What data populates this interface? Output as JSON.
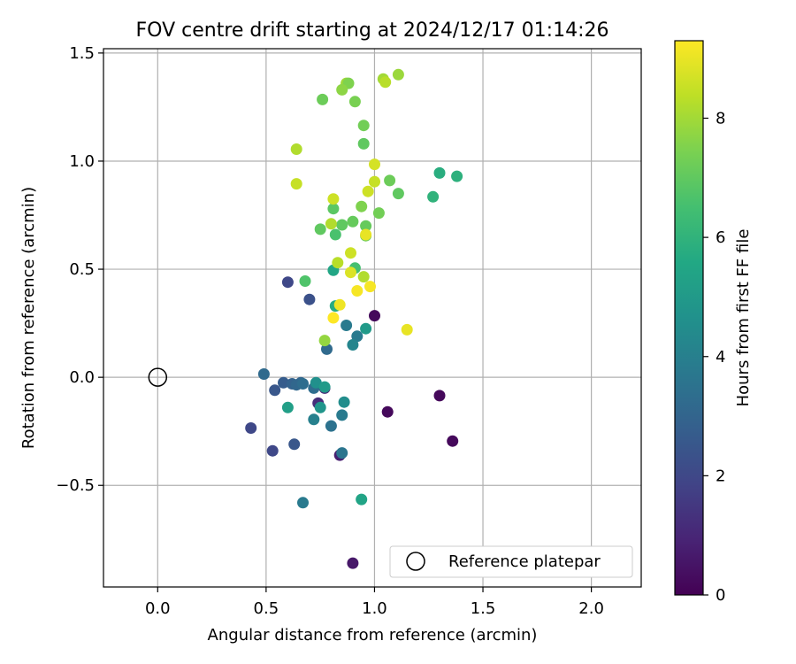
{
  "chart_data": {
    "type": "scatter",
    "title": "FOV centre drift starting at 2024/12/17 01:14:26",
    "xlabel": "Angular distance from reference (arcmin)",
    "ylabel": "Rotation from reference (arcmin)",
    "xlim": [
      -0.25,
      2.23
    ],
    "ylim": [
      -0.97,
      1.52
    ],
    "xticks": [
      0.0,
      0.5,
      1.0,
      1.5,
      2.0
    ],
    "xtick_labels": [
      "0.0",
      "0.5",
      "1.0",
      "1.5",
      "2.0"
    ],
    "yticks": [
      -0.5,
      0.0,
      0.5,
      1.0,
      1.5
    ],
    "ytick_labels": [
      "−0.5",
      "0.0",
      "0.5",
      "1.0",
      "1.5"
    ],
    "grid": true,
    "legend": {
      "placement": "lower-right",
      "entries": [
        {
          "label": "Reference platepar",
          "marker": "open-circle"
        }
      ]
    },
    "reference_point": {
      "x": 0.0,
      "y": 0.0
    },
    "colorbar": {
      "label": "Hours from first FF file",
      "colormap": "viridis",
      "range": [
        0,
        9.3
      ],
      "ticks": [
        0,
        2,
        4,
        6,
        8
      ],
      "tick_labels": [
        "0",
        "2",
        "4",
        "6",
        "8"
      ]
    },
    "points": [
      [
        1.0,
        0.285,
        0.2
      ],
      [
        1.06,
        -0.16,
        0.2
      ],
      [
        1.3,
        -0.085,
        0.2
      ],
      [
        1.36,
        -0.295,
        0.2
      ],
      [
        0.9,
        -0.86,
        0.6
      ],
      [
        0.84,
        -0.36,
        0.8
      ],
      [
        0.77,
        -0.05,
        1.0
      ],
      [
        0.74,
        -0.12,
        1.2
      ],
      [
        0.43,
        -0.235,
        2.0
      ],
      [
        0.53,
        -0.34,
        2.0
      ],
      [
        0.6,
        0.44,
        2.0
      ],
      [
        0.7,
        0.36,
        2.3
      ],
      [
        0.63,
        -0.31,
        2.5
      ],
      [
        0.54,
        -0.06,
        2.5
      ],
      [
        0.58,
        -0.025,
        2.7
      ],
      [
        0.62,
        -0.03,
        2.9
      ],
      [
        0.66,
        -0.025,
        3.0
      ],
      [
        0.49,
        0.015,
        3.2
      ],
      [
        0.64,
        -0.035,
        3.1
      ],
      [
        0.67,
        -0.03,
        3.3
      ],
      [
        0.72,
        -0.05,
        3.3
      ],
      [
        0.78,
        0.13,
        3.2
      ],
      [
        0.8,
        -0.225,
        3.5
      ],
      [
        0.85,
        -0.35,
        3.6
      ],
      [
        0.85,
        -0.175,
        3.8
      ],
      [
        0.92,
        0.19,
        3.8
      ],
      [
        0.87,
        0.24,
        3.8
      ],
      [
        0.9,
        0.15,
        4.2
      ],
      [
        0.72,
        -0.195,
        4.0
      ],
      [
        0.67,
        -0.58,
        3.8
      ],
      [
        0.86,
        -0.115,
        4.5
      ],
      [
        0.75,
        -0.14,
        4.8
      ],
      [
        0.73,
        -0.025,
        4.6
      ],
      [
        0.77,
        -0.045,
        5.0
      ],
      [
        0.6,
        -0.14,
        5.2
      ],
      [
        0.96,
        0.225,
        5.0
      ],
      [
        0.94,
        -0.565,
        5.4
      ],
      [
        0.81,
        0.495,
        5.5
      ],
      [
        0.82,
        0.33,
        5.7
      ],
      [
        1.3,
        0.945,
        5.8
      ],
      [
        1.38,
        0.93,
        5.9
      ],
      [
        1.27,
        0.835,
        6.0
      ],
      [
        0.91,
        0.505,
        6.5
      ],
      [
        0.68,
        0.445,
        6.7
      ],
      [
        0.82,
        0.66,
        6.6
      ],
      [
        0.81,
        0.78,
        6.9
      ],
      [
        0.75,
        0.685,
        7.0
      ],
      [
        0.85,
        0.705,
        7.0
      ],
      [
        0.9,
        0.72,
        7.1
      ],
      [
        0.96,
        0.655,
        7.2
      ],
      [
        0.94,
        0.79,
        7.5
      ],
      [
        0.96,
        0.7,
        7.1
      ],
      [
        1.02,
        0.76,
        7.3
      ],
      [
        1.11,
        0.85,
        7.0
      ],
      [
        1.07,
        0.91,
        7.2
      ],
      [
        0.95,
        1.08,
        7.0
      ],
      [
        0.95,
        1.165,
        7.3
      ],
      [
        0.91,
        1.275,
        7.4
      ],
      [
        0.76,
        1.285,
        7.2
      ],
      [
        0.87,
        1.36,
        8.0
      ],
      [
        0.88,
        1.36,
        7.5
      ],
      [
        0.85,
        1.33,
        7.7
      ],
      [
        1.04,
        1.38,
        8.0
      ],
      [
        1.05,
        1.365,
        8.3
      ],
      [
        1.11,
        1.4,
        7.9
      ],
      [
        0.64,
        1.055,
        8.2
      ],
      [
        0.64,
        0.895,
        8.5
      ],
      [
        0.8,
        0.71,
        8.2
      ],
      [
        0.81,
        0.825,
        8.6
      ],
      [
        1.0,
        0.985,
        8.7
      ],
      [
        1.0,
        0.905,
        8.5
      ],
      [
        0.97,
        0.86,
        8.6
      ],
      [
        0.95,
        0.465,
        8.2
      ],
      [
        0.83,
        0.53,
        8.3
      ],
      [
        0.89,
        0.575,
        8.6
      ],
      [
        0.89,
        0.485,
        8.8
      ],
      [
        0.77,
        0.17,
        7.8
      ],
      [
        0.96,
        0.66,
        9.0
      ],
      [
        0.84,
        0.335,
        9.1
      ],
      [
        0.92,
        0.4,
        9.2
      ],
      [
        0.98,
        0.42,
        9.2
      ],
      [
        0.81,
        0.275,
        9.3
      ],
      [
        1.15,
        0.22,
        9.0
      ]
    ]
  }
}
